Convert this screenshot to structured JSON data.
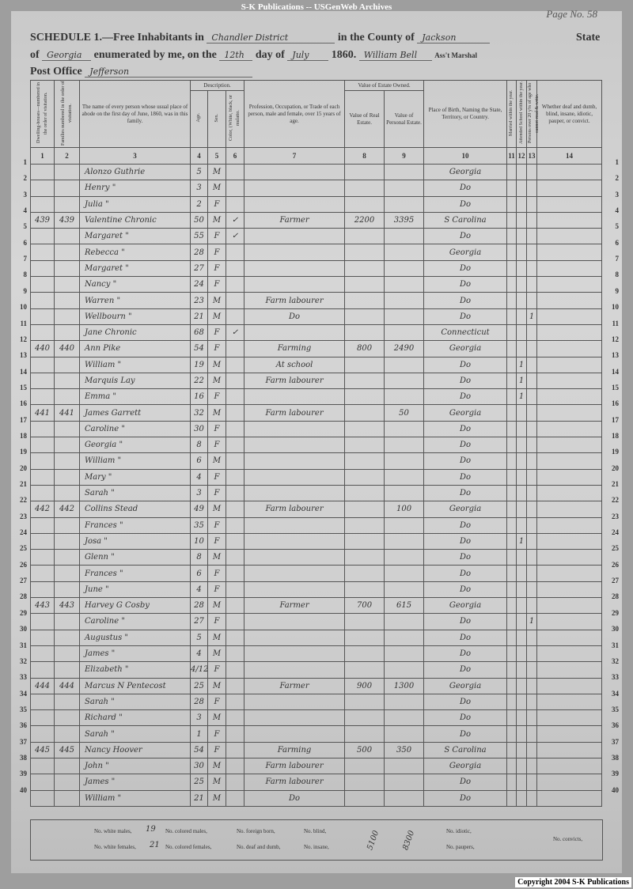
{
  "banner": "S-K Publications -- USGenWeb Archives",
  "page_label": "Page No. 58",
  "header": {
    "schedule_label": "SCHEDULE 1.—Free Inhabitants in",
    "district": "Chandler District",
    "county_label": "in the County of",
    "county": "Jackson",
    "state_label": "State",
    "of_label": "of",
    "state": "Georgia",
    "enumerated_label": "enumerated by me, on the",
    "day": "12th",
    "day_of_label": "day of",
    "month": "July",
    "year": "1860.",
    "marshal": "William Bell",
    "marshal_label": "Ass't Marshal",
    "post_office_label": "Post Office",
    "post_office": "Jefferson"
  },
  "columns": {
    "c1": "Dwelling-houses—numbered in the order of visitation.",
    "c2": "Families numbered in the order of visitation.",
    "c3": "The name of every person whose usual place of abode on the first day of June, 1860, was in this family.",
    "description": "Description.",
    "c4": "Age.",
    "c5": "Sex.",
    "c6": "Color, {White, black, or mulatto.",
    "c7": "Profession, Occupation, or Trade of each person, male and female, over 15 years of age.",
    "estate": "Value of Estate Owned.",
    "c8": "Value of Real Estate.",
    "c9": "Value of Personal Estate.",
    "c10": "Place of Birth, Naming the State, Territory, or Country.",
    "c11": "Married within the year.",
    "c12": "Attended School within the year.",
    "c13": "Persons over 20 y'rs of age who cannot read & write.",
    "c14": "Whether deaf and dumb, blind, insane, idiotic, pauper, or convict.",
    "numbers": [
      "1",
      "2",
      "3",
      "4",
      "5",
      "6",
      "7",
      "8",
      "9",
      "10",
      "11",
      "12",
      "13",
      "14"
    ]
  },
  "rows": [
    [
      "",
      "",
      "Alonzo Guthrie",
      "5",
      "M",
      "",
      "",
      "",
      "",
      "Georgia",
      "",
      "",
      ""
    ],
    [
      "",
      "",
      "Henry \"",
      "3",
      "M",
      "",
      "",
      "",
      "",
      "Do",
      "",
      "",
      ""
    ],
    [
      "",
      "",
      "Julia \"",
      "2",
      "F",
      "",
      "",
      "",
      "",
      "Do",
      "",
      "",
      ""
    ],
    [
      "439",
      "439",
      "Valentine Chronic",
      "50",
      "M",
      "✓",
      "Farmer",
      "2200",
      "3395",
      "S Carolina",
      "",
      "",
      ""
    ],
    [
      "",
      "",
      "Margaret \"",
      "55",
      "F",
      "✓",
      "",
      "",
      "",
      "Do",
      "",
      "",
      ""
    ],
    [
      "",
      "",
      "Rebecca \"",
      "28",
      "F",
      "",
      "",
      "",
      "",
      "Georgia",
      "",
      "",
      ""
    ],
    [
      "",
      "",
      "Margaret \"",
      "27",
      "F",
      "",
      "",
      "",
      "",
      "Do",
      "",
      "",
      ""
    ],
    [
      "",
      "",
      "Nancy \"",
      "24",
      "F",
      "",
      "",
      "",
      "",
      "Do",
      "",
      "",
      ""
    ],
    [
      "",
      "",
      "Warren \"",
      "23",
      "M",
      "",
      "Farm labourer",
      "",
      "",
      "Do",
      "",
      "",
      ""
    ],
    [
      "",
      "",
      "Wellbourn \"",
      "21",
      "M",
      "",
      "Do",
      "",
      "",
      "Do",
      "",
      "",
      "1"
    ],
    [
      "",
      "",
      "Jane Chronic",
      "68",
      "F",
      "✓",
      "",
      "",
      "",
      "Connecticut",
      "",
      "",
      ""
    ],
    [
      "440",
      "440",
      "Ann Pike",
      "54",
      "F",
      "",
      "Farming",
      "800",
      "2490",
      "Georgia",
      "",
      "",
      ""
    ],
    [
      "",
      "",
      "William \"",
      "19",
      "M",
      "",
      "At school",
      "",
      "",
      "Do",
      "",
      "1",
      ""
    ],
    [
      "",
      "",
      "Marquis Lay",
      "22",
      "M",
      "",
      "Farm labourer",
      "",
      "",
      "Do",
      "",
      "1",
      ""
    ],
    [
      "",
      "",
      "Emma \"",
      "16",
      "F",
      "",
      "",
      "",
      "",
      "Do",
      "",
      "1",
      ""
    ],
    [
      "441",
      "441",
      "James Garrett",
      "32",
      "M",
      "",
      "Farm labourer",
      "",
      "50",
      "Georgia",
      "",
      "",
      ""
    ],
    [
      "",
      "",
      "Caroline \"",
      "30",
      "F",
      "",
      "",
      "",
      "",
      "Do",
      "",
      "",
      ""
    ],
    [
      "",
      "",
      "Georgia \"",
      "8",
      "F",
      "",
      "",
      "",
      "",
      "Do",
      "",
      "",
      ""
    ],
    [
      "",
      "",
      "William \"",
      "6",
      "M",
      "",
      "",
      "",
      "",
      "Do",
      "",
      "",
      ""
    ],
    [
      "",
      "",
      "Mary \"",
      "4",
      "F",
      "",
      "",
      "",
      "",
      "Do",
      "",
      "",
      ""
    ],
    [
      "",
      "",
      "Sarah \"",
      "3",
      "F",
      "",
      "",
      "",
      "",
      "Do",
      "",
      "",
      ""
    ],
    [
      "442",
      "442",
      "Collins Stead",
      "49",
      "M",
      "",
      "Farm labourer",
      "",
      "100",
      "Georgia",
      "",
      "",
      ""
    ],
    [
      "",
      "",
      "Frances \"",
      "35",
      "F",
      "",
      "",
      "",
      "",
      "Do",
      "",
      "",
      ""
    ],
    [
      "",
      "",
      "Josa \"",
      "10",
      "F",
      "",
      "",
      "",
      "",
      "Do",
      "",
      "1",
      ""
    ],
    [
      "",
      "",
      "Glenn \"",
      "8",
      "M",
      "",
      "",
      "",
      "",
      "Do",
      "",
      "",
      ""
    ],
    [
      "",
      "",
      "Frances \"",
      "6",
      "F",
      "",
      "",
      "",
      "",
      "Do",
      "",
      "",
      ""
    ],
    [
      "",
      "",
      "June \"",
      "4",
      "F",
      "",
      "",
      "",
      "",
      "Do",
      "",
      "",
      ""
    ],
    [
      "443",
      "443",
      "Harvey G Cosby",
      "28",
      "M",
      "",
      "Farmer",
      "700",
      "615",
      "Georgia",
      "",
      "",
      ""
    ],
    [
      "",
      "",
      "Caroline \"",
      "27",
      "F",
      "",
      "",
      "",
      "",
      "Do",
      "",
      "",
      "1"
    ],
    [
      "",
      "",
      "Augustus \"",
      "5",
      "M",
      "",
      "",
      "",
      "",
      "Do",
      "",
      "",
      ""
    ],
    [
      "",
      "",
      "James \"",
      "4",
      "M",
      "",
      "",
      "",
      "",
      "Do",
      "",
      "",
      ""
    ],
    [
      "",
      "",
      "Elizabeth \"",
      "4/12",
      "F",
      "",
      "",
      "",
      "",
      "Do",
      "",
      "",
      ""
    ],
    [
      "444",
      "444",
      "Marcus N Pentecost",
      "25",
      "M",
      "",
      "Farmer",
      "900",
      "1300",
      "Georgia",
      "",
      "",
      ""
    ],
    [
      "",
      "",
      "Sarah \"",
      "28",
      "F",
      "",
      "",
      "",
      "",
      "Do",
      "",
      "",
      ""
    ],
    [
      "",
      "",
      "Richard \"",
      "3",
      "M",
      "",
      "",
      "",
      "",
      "Do",
      "",
      "",
      ""
    ],
    [
      "",
      "",
      "Sarah \"",
      "1",
      "F",
      "",
      "",
      "",
      "",
      "Do",
      "",
      "",
      ""
    ],
    [
      "445",
      "445",
      "Nancy Hoover",
      "54",
      "F",
      "",
      "Farming",
      "500",
      "350",
      "S Carolina",
      "",
      "",
      ""
    ],
    [
      "",
      "",
      "John \"",
      "30",
      "M",
      "",
      "Farm labourer",
      "",
      "",
      "Georgia",
      "",
      "",
      ""
    ],
    [
      "",
      "",
      "James \"",
      "25",
      "M",
      "",
      "Farm labourer",
      "",
      "",
      "Do",
      "",
      "",
      ""
    ],
    [
      "",
      "",
      "William \"",
      "21",
      "M",
      "",
      "Do",
      "",
      "",
      "Do",
      "",
      "",
      ""
    ]
  ],
  "footer": {
    "white_males_label": "No. white males,",
    "white_males": "19",
    "white_females_label": "No. white females,",
    "white_females": "21",
    "colored_males_label": "No. colored males,",
    "colored_females_label": "No. colored females,",
    "foreign_born_label": "No. foreign born,",
    "deaf_dumb_label": "No. deaf and dumb,",
    "blind_label": "No. blind,",
    "insane_label": "No. insane,",
    "idiotic_label": "No. idiotic,",
    "paupers_label": "No. paupers,",
    "convicts_label": "No. convicts,",
    "tally_real": "5100",
    "tally_personal": "8300"
  },
  "copyright": "Copyright 2004 S-K Publications"
}
